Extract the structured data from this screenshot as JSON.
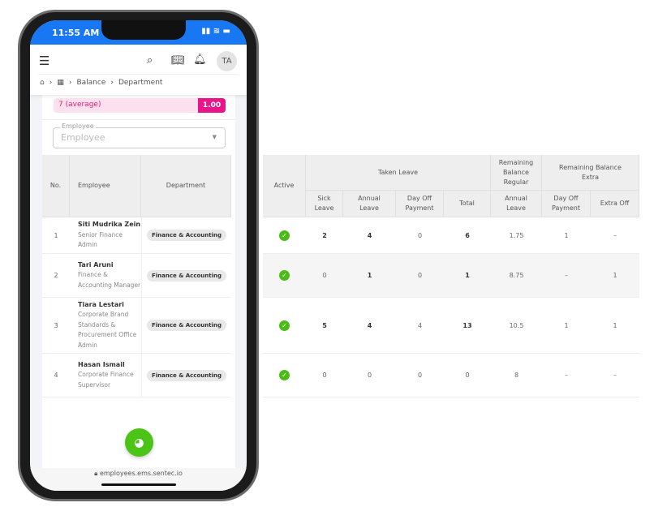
{
  "status": {
    "time": "11:55 AM"
  },
  "header": {
    "avatar": "TA",
    "breadcrumb": [
      "Balance",
      "Department"
    ]
  },
  "summary": {
    "label": "7 (average)",
    "value": "1.00"
  },
  "filter": {
    "label": "Employee",
    "placeholder": "Employee"
  },
  "left_table": {
    "headers": [
      "No.",
      "Employee",
      "Department"
    ],
    "rows": [
      {
        "no": "1",
        "name": "Siti Mudrika Zein",
        "title": "Senior Finance Admin",
        "department": "Finance & Accounting"
      },
      {
        "no": "2",
        "name": "Tari Aruni",
        "title": "Finance & Accounting Manager",
        "department": "Finance & Accounting"
      },
      {
        "no": "3",
        "name": "Tiara Lestari",
        "title": "Corporate Brand Standards & Procurement Office Admin",
        "department": "Finance & Accounting"
      },
      {
        "no": "4",
        "name": "Hasan Ismail",
        "title": "Corporate Finance Supervisor",
        "department": "Finance & Accounting"
      }
    ]
  },
  "right_table": {
    "active": "Active",
    "taken": "Taken Leave",
    "regular": "Remaining Balance Regular",
    "extra": "Remaining Balance Extra",
    "sub": [
      "Sick Leave",
      "Annual Leave",
      "Day Off Payment",
      "Total",
      "Annual Leave",
      "Day Off Payment",
      "Extra Off"
    ],
    "rows": [
      [
        "2",
        "4",
        "0",
        "6",
        "1.75",
        "1",
        "–"
      ],
      [
        "0",
        "1",
        "0",
        "1",
        "8.75",
        "–",
        "1"
      ],
      [
        "5",
        "4",
        "4",
        "13",
        "10.5",
        "1",
        "1"
      ],
      [
        "0",
        "0",
        "0",
        "0",
        "8",
        "–",
        "–"
      ]
    ]
  },
  "url": "employees.ems.sentec.io",
  "colors": {
    "primary": "#1877f2",
    "accent": "#e9158a",
    "success": "#4cbb17"
  }
}
